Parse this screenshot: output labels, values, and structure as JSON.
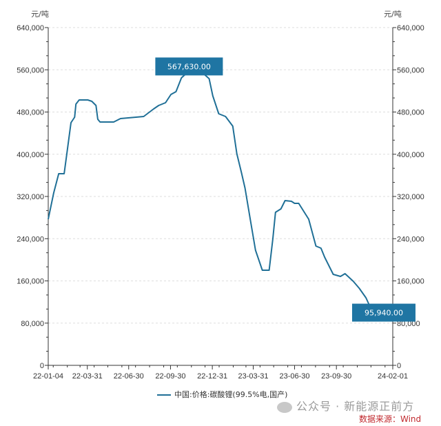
{
  "chart_data": {
    "type": "line",
    "title": "",
    "y_unit_left": "元/吨",
    "y_unit_right": "元/吨",
    "ylim": [
      0,
      640000
    ],
    "y_ticks": [
      "0",
      "80,000",
      "160,000",
      "240,000",
      "320,000",
      "400,000",
      "480,000",
      "560,000",
      "640,000"
    ],
    "y_tick_values": [
      0,
      80000,
      160000,
      240000,
      320000,
      400000,
      480000,
      560000,
      640000
    ],
    "xlim": [
      "2022-01-04",
      "2024-02-01"
    ],
    "x_ticks": [
      "22-01-04",
      "22-03-31",
      "22-06-30",
      "22-09-30",
      "22-12-31",
      "23-03-31",
      "23-06-30",
      "23-09-30",
      "24-02-01"
    ],
    "x_tick_dates": [
      "2022-01-04",
      "2022-03-31",
      "2022-06-30",
      "2022-09-30",
      "2022-12-31",
      "2023-03-31",
      "2023-06-30",
      "2023-09-30",
      "2024-02-01"
    ],
    "grid": "horizontal dashed",
    "legend_position": "bottom",
    "series": [
      {
        "name": "中国:价格:碳酸锂(99.5%电,国产)",
        "color": "#1f6f96",
        "points": [
          [
            "2022-01-04",
            277000
          ],
          [
            "2022-01-16",
            326500
          ],
          [
            "2022-01-27",
            363100
          ],
          [
            "2022-02-08",
            363100
          ],
          [
            "2022-02-14",
            401000
          ],
          [
            "2022-02-23",
            459800
          ],
          [
            "2022-03-03",
            470200
          ],
          [
            "2022-03-06",
            495000
          ],
          [
            "2022-03-13",
            502800
          ],
          [
            "2022-04-01",
            502800
          ],
          [
            "2022-04-10",
            500200
          ],
          [
            "2022-04-19",
            492400
          ],
          [
            "2022-04-23",
            466300
          ],
          [
            "2022-04-28",
            461000
          ],
          [
            "2022-05-28",
            461000
          ],
          [
            "2022-06-12",
            467600
          ],
          [
            "2022-08-02",
            471500
          ],
          [
            "2022-08-24",
            485900
          ],
          [
            "2022-09-04",
            492400
          ],
          [
            "2022-09-19",
            497600
          ],
          [
            "2022-10-01",
            513300
          ],
          [
            "2022-10-12",
            518500
          ],
          [
            "2022-10-24",
            544600
          ],
          [
            "2022-11-22",
            567630
          ],
          [
            "2022-12-24",
            543200
          ],
          [
            "2023-01-01",
            510700
          ],
          [
            "2023-01-14",
            476700
          ],
          [
            "2023-01-29",
            471500
          ],
          [
            "2023-02-14",
            453200
          ],
          [
            "2023-02-23",
            401000
          ],
          [
            "2023-03-05",
            365700
          ],
          [
            "2023-03-13",
            335700
          ],
          [
            "2023-03-25",
            274300
          ],
          [
            "2023-04-05",
            218100
          ],
          [
            "2023-04-20",
            180200
          ],
          [
            "2023-05-05",
            180200
          ],
          [
            "2023-05-13",
            239000
          ],
          [
            "2023-05-19",
            290000
          ],
          [
            "2023-05-31",
            296500
          ],
          [
            "2023-06-09",
            312200
          ],
          [
            "2023-06-23",
            310800
          ],
          [
            "2023-06-30",
            306900
          ],
          [
            "2023-07-09",
            306900
          ],
          [
            "2023-07-31",
            276900
          ],
          [
            "2023-08-16",
            226000
          ],
          [
            "2023-08-27",
            222000
          ],
          [
            "2023-09-04",
            205100
          ],
          [
            "2023-09-23",
            172400
          ],
          [
            "2023-10-09",
            168500
          ],
          [
            "2023-10-19",
            173700
          ],
          [
            "2023-11-06",
            159400
          ],
          [
            "2023-11-19",
            146300
          ],
          [
            "2023-12-04",
            128000
          ],
          [
            "2023-12-11",
            114900
          ],
          [
            "2023-12-19",
            95940
          ]
        ]
      }
    ],
    "annotations": [
      {
        "label": "567,630.00",
        "date": "2022-11-22",
        "value": 567630
      },
      {
        "label": "95,940.00",
        "date": "2023-12-19",
        "value": 95940
      }
    ],
    "annotation_color": "#1f75a3"
  },
  "legend": {
    "label": "中国:价格:碳酸锂(99.5%电,国产)"
  },
  "watermark": {
    "text": "公众号 · 新能源正前方"
  },
  "source": {
    "text": "数据来源：Wind",
    "color": "#c0282d"
  }
}
